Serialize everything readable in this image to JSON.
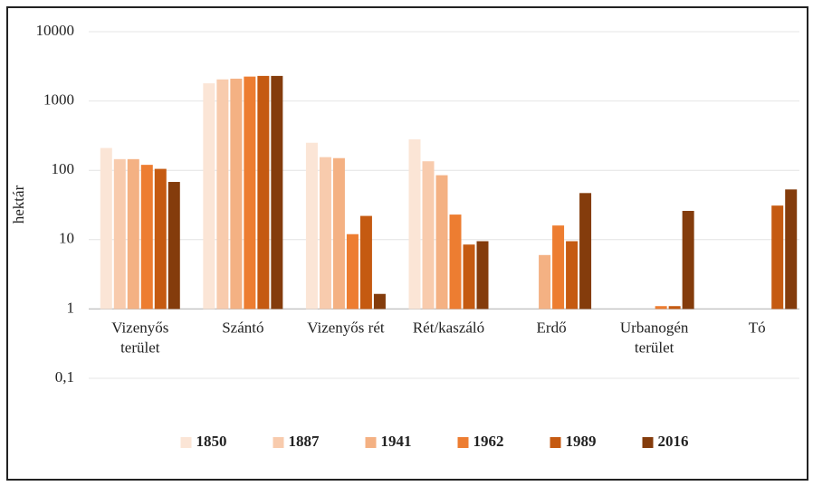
{
  "chart_data": {
    "type": "bar",
    "y_label": "hektár",
    "categories": [
      "Vizenyős\nterület",
      "Szántó",
      "Vizenyős rét",
      "Rét/kaszáló",
      "Erdő",
      "Urbanogén\nterület",
      "Tó"
    ],
    "series": [
      {
        "name": "1850",
        "color": "#fbe5d6",
        "values": [
          210,
          1800,
          250,
          280,
          null,
          null,
          null
        ]
      },
      {
        "name": "1887",
        "color": "#f8cbad",
        "values": [
          145,
          2050,
          155,
          135,
          null,
          null,
          null
        ]
      },
      {
        "name": "1941",
        "color": "#f4b183",
        "values": [
          145,
          2100,
          150,
          85,
          6,
          null,
          null
        ]
      },
      {
        "name": "1962",
        "color": "#ed7d31",
        "values": [
          120,
          2250,
          12,
          23,
          16,
          1.1,
          null
        ]
      },
      {
        "name": "1989",
        "color": "#c55a11",
        "values": [
          105,
          2300,
          22,
          8.5,
          9.5,
          1.1,
          31
        ]
      },
      {
        "name": "2016",
        "color": "#843c0c",
        "values": [
          68,
          2300,
          1.65,
          9.5,
          47,
          26,
          53
        ]
      }
    ],
    "log_scale": true,
    "ylim": [
      0.1,
      10000
    ],
    "yticks": [
      {
        "value": 0.1,
        "label": "0,1"
      },
      1,
      10,
      100,
      1000,
      10000
    ],
    "grid": true,
    "legend": "bottom"
  }
}
